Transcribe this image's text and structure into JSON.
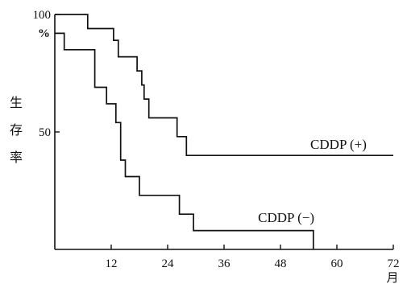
{
  "chart_data": {
    "type": "line",
    "title": "",
    "ylabel": "生存率",
    "xunit": "月",
    "yunit": "%",
    "xlim": [
      0,
      72
    ],
    "ylim": [
      0,
      100
    ],
    "xticks": [
      12,
      24,
      36,
      48,
      60,
      72
    ],
    "yticks": [
      {
        "value": 100,
        "label": "100"
      },
      {
        "value": 50,
        "label": "50"
      }
    ],
    "series": [
      {
        "name": "CDDP (+)",
        "color": "#111111",
        "step": true,
        "points": [
          [
            0,
            100
          ],
          [
            7,
            100
          ],
          [
            7,
            94
          ],
          [
            12.5,
            94
          ],
          [
            12.5,
            89
          ],
          [
            13.5,
            89
          ],
          [
            13.5,
            82
          ],
          [
            17.5,
            82
          ],
          [
            17.5,
            76
          ],
          [
            18.5,
            76
          ],
          [
            18.5,
            70
          ],
          [
            19,
            70
          ],
          [
            19,
            64
          ],
          [
            20,
            64
          ],
          [
            20,
            56
          ],
          [
            26,
            56
          ],
          [
            26,
            48
          ],
          [
            28,
            48
          ],
          [
            28,
            40
          ],
          [
            72,
            40
          ]
        ]
      },
      {
        "name": "CDDP (−)",
        "color": "#111111",
        "step": true,
        "points": [
          [
            0,
            92
          ],
          [
            2,
            92
          ],
          [
            2,
            85
          ],
          [
            8.5,
            85
          ],
          [
            8.5,
            69
          ],
          [
            11,
            69
          ],
          [
            11,
            62
          ],
          [
            13,
            62
          ],
          [
            13,
            54
          ],
          [
            14,
            54
          ],
          [
            14,
            38
          ],
          [
            15,
            38
          ],
          [
            15,
            31
          ],
          [
            18,
            31
          ],
          [
            18,
            23
          ],
          [
            26.5,
            23
          ],
          [
            26.5,
            15
          ],
          [
            29.5,
            15
          ],
          [
            29.5,
            8
          ],
          [
            55,
            8
          ],
          [
            55,
            0
          ]
        ]
      }
    ]
  }
}
